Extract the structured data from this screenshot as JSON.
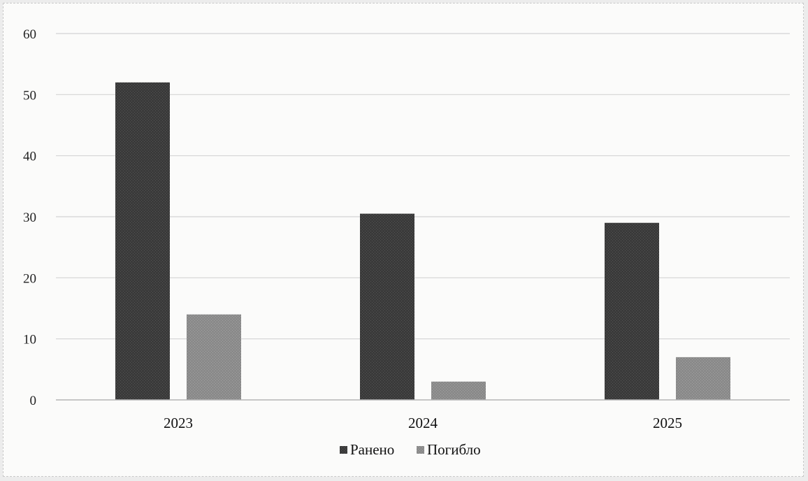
{
  "chart_data": {
    "type": "bar",
    "categories": [
      "2023",
      "2024",
      "2025"
    ],
    "series": [
      {
        "name": "Ранено",
        "values": [
          52,
          30.5,
          29
        ],
        "color": "#3a3a3a"
      },
      {
        "name": "Погибло",
        "values": [
          14,
          3,
          7
        ],
        "color": "#8a8a8a"
      }
    ],
    "ylim": [
      0,
      60
    ],
    "yticks": [
      "0",
      "10",
      "20",
      "30",
      "40",
      "50",
      "60"
    ],
    "grid": true,
    "legend_position": "bottom-center"
  }
}
